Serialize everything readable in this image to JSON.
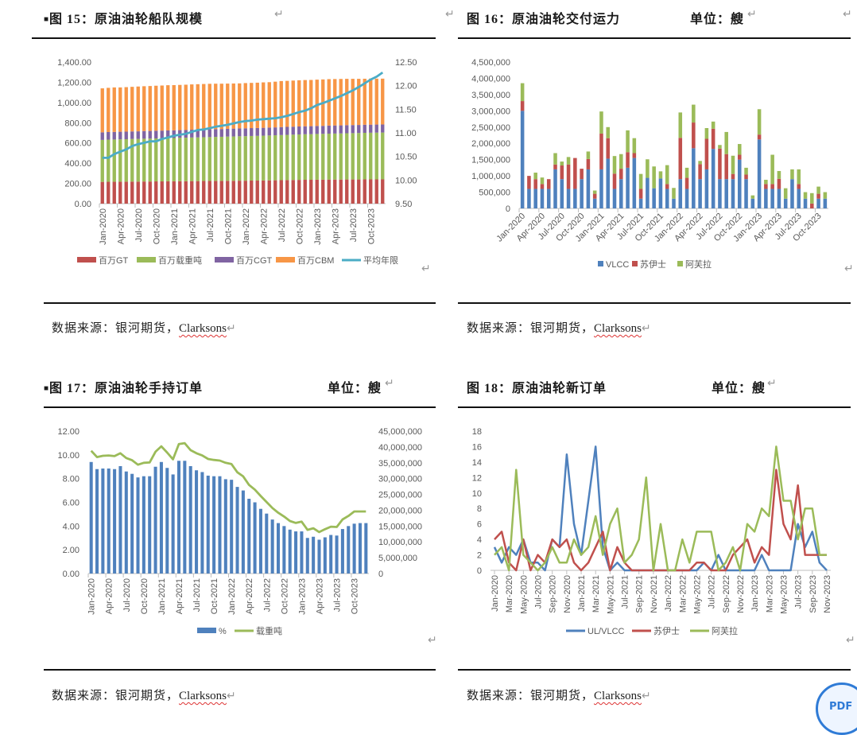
{
  "figures": {
    "f15": {
      "title": "图 15：原油油轮船队规模",
      "source_prefix": "数据来源：银河期货，",
      "source_brand": "Clarksons"
    },
    "f16": {
      "title": "图 16：原油油轮交付运力",
      "unit": "单位：艘",
      "source_prefix": "数据来源：银河期货，",
      "source_brand": "Clarksons"
    },
    "f17": {
      "title": "图 17：原油油轮手持订单",
      "unit": "单位：艘",
      "source_prefix": "数据来源：银河期货，",
      "source_brand": "Clarksons"
    },
    "f18": {
      "title": "图 18：原油油轮新订单",
      "unit": "单位：艘",
      "source_prefix": "数据来源：银河期货，",
      "source_brand": "Clarksons"
    }
  },
  "marks": {
    "return": "↵",
    "bullet": "■",
    "pdf_icon": "PDF"
  },
  "chart_data": [
    {
      "id": "f15",
      "type": "bar",
      "stacked": true,
      "x_start": "Jan-2020",
      "x_end": "Dec-2023",
      "x_tick_labels": [
        "Jan-2020",
        "Apr-2020",
        "Jul-2020",
        "Oct-2020",
        "Jan-2021",
        "Apr-2021",
        "Jul-2021",
        "Oct-2021",
        "Jan-2022",
        "Apr-2022",
        "Jul-2022",
        "Oct-2022",
        "Jan-2023",
        "Apr-2023",
        "Jul-2023",
        "Oct-2023"
      ],
      "y_left": {
        "min": 0,
        "max": 1400,
        "ticks": [
          "0.00",
          "200.00",
          "400.00",
          "600.00",
          "800.00",
          "1,000.00",
          "1,200.00",
          "1,400.00"
        ]
      },
      "y_right": {
        "min": 9.5,
        "max": 12.5,
        "ticks": [
          "9.50",
          "10.00",
          "10.50",
          "11.00",
          "11.50",
          "12.00",
          "12.50"
        ]
      },
      "legend_position": "bottom",
      "series": [
        {
          "name": "百万GT",
          "color": "#C0504D",
          "axis": "left",
          "kind": "bar",
          "values": [
            215,
            216,
            216,
            217,
            217,
            218,
            218,
            219,
            219,
            220,
            220,
            221,
            221,
            222,
            222,
            223,
            223,
            224,
            224,
            225,
            225,
            226,
            226,
            227,
            227,
            228,
            228,
            229,
            230,
            231,
            232,
            233,
            234,
            235,
            236,
            236,
            237,
            237,
            238,
            238,
            238,
            239,
            239,
            239,
            240,
            240,
            240,
            240
          ]
        },
        {
          "name": "百万载重吨",
          "color": "#9BBB59",
          "axis": "left",
          "kind": "bar",
          "values": [
            415,
            417,
            418,
            419,
            420,
            421,
            422,
            423,
            424,
            425,
            426,
            427,
            428,
            429,
            430,
            431,
            432,
            433,
            434,
            435,
            436,
            437,
            438,
            439,
            440,
            441,
            442,
            443,
            444,
            445,
            446,
            447,
            448,
            449,
            450,
            451,
            452,
            453,
            454,
            455,
            456,
            457,
            458,
            459,
            460,
            461,
            462,
            463
          ]
        },
        {
          "name": "百万CGT",
          "color": "#8064A2",
          "axis": "left",
          "kind": "bar",
          "values": [
            75,
            75,
            75,
            75,
            75,
            75,
            75,
            76,
            76,
            76,
            76,
            76,
            76,
            76,
            76,
            77,
            77,
            77,
            77,
            77,
            77,
            77,
            78,
            78,
            78,
            78,
            78,
            78,
            78,
            78,
            79,
            79,
            79,
            79,
            79,
            79,
            79,
            79,
            80,
            80,
            80,
            80,
            80,
            80,
            80,
            80,
            80,
            80
          ]
        },
        {
          "name": "百万CBM",
          "color": "#F79646",
          "axis": "left",
          "kind": "bar",
          "values": [
            435,
            437,
            440,
            438,
            440,
            441,
            443,
            443,
            444,
            445,
            446,
            447,
            447,
            447,
            448,
            448,
            449,
            449,
            450,
            449,
            448,
            447,
            446,
            445,
            447,
            447,
            448,
            449,
            449,
            452,
            455,
            455,
            456,
            457,
            457,
            457,
            458,
            459,
            459,
            459,
            459,
            458,
            457,
            456,
            455,
            456,
            454,
            453
          ]
        },
        {
          "name": "平均年限",
          "color": "#4BACC6",
          "axis": "right",
          "kind": "line",
          "values": [
            10.47,
            10.47,
            10.55,
            10.6,
            10.65,
            10.72,
            10.76,
            10.79,
            10.82,
            10.82,
            10.87,
            10.9,
            10.94,
            10.96,
            10.98,
            11.02,
            11.06,
            11.07,
            11.1,
            11.13,
            11.15,
            11.17,
            11.2,
            11.23,
            11.25,
            11.26,
            11.28,
            11.29,
            11.3,
            11.31,
            11.33,
            11.36,
            11.4,
            11.44,
            11.47,
            11.52,
            11.59,
            11.63,
            11.68,
            11.73,
            11.78,
            11.84,
            11.9,
            11.97,
            12.05,
            12.13,
            12.19,
            12.28
          ]
        }
      ]
    },
    {
      "id": "f16",
      "type": "bar",
      "stacked": true,
      "x_start": "Jan-2020",
      "x_end": "Nov-2023",
      "x_tick_labels": [
        "Jan-2020",
        "Apr-2020",
        "Jul-2020",
        "Oct-2020",
        "Jan-2021",
        "Apr-2021",
        "Jul-2021",
        "Oct-2021",
        "Jan-2022",
        "Apr-2022",
        "Jul-2022",
        "Oct-2022",
        "Jan-2023",
        "Apr-2023",
        "Jul-2023",
        "Oct-2023"
      ],
      "y_left": {
        "min": 0,
        "max": 4500000,
        "ticks": [
          "0",
          "500,000",
          "1,000,000",
          "1,500,000",
          "2,000,000",
          "2,500,000",
          "3,000,000",
          "3,500,000",
          "4,000,000",
          "4,500,000"
        ]
      },
      "legend_position": "bottom",
      "series": [
        {
          "name": "VLCC",
          "color": "#4F81BD",
          "kind": "bar",
          "values": [
            3000000,
            600000,
            600000,
            600000,
            600000,
            1200000,
            900000,
            600000,
            600000,
            900000,
            1200000,
            300000,
            1200000,
            1530000,
            600000,
            900000,
            1250000,
            1550000,
            300000,
            940000,
            620000,
            920000,
            600000,
            300000,
            900000,
            600000,
            1850000,
            900000,
            1200000,
            1830000,
            900000,
            900000,
            900000,
            1500000,
            900000,
            300000,
            2120000,
            600000,
            600000,
            600000,
            300000,
            900000,
            600000,
            300000,
            0,
            300000,
            300000
          ]
        },
        {
          "name": "苏伊士",
          "color": "#C0504D",
          "kind": "bar",
          "values": [
            300000,
            400000,
            300000,
            150000,
            300000,
            150000,
            420000,
            750000,
            950000,
            320000,
            320000,
            150000,
            1100000,
            630000,
            470000,
            320000,
            480000,
            150000,
            300000,
            0,
            0,
            0,
            150000,
            0,
            1270000,
            340000,
            790000,
            460000,
            940000,
            620000,
            940000,
            770000,
            160000,
            150000,
            140000,
            0,
            150000,
            150000,
            150000,
            310000,
            0,
            0,
            150000,
            0,
            150000,
            150000,
            0
          ]
        },
        {
          "name": "阿芙拉",
          "color": "#9BBB59",
          "kind": "bar",
          "values": [
            550000,
            0,
            200000,
            200000,
            0,
            350000,
            120000,
            230000,
            0,
            0,
            230000,
            100000,
            680000,
            340000,
            540000,
            450000,
            670000,
            460000,
            460000,
            570000,
            670000,
            220000,
            580000,
            330000,
            780000,
            310000,
            550000,
            100000,
            330000,
            220000,
            110000,
            680000,
            560000,
            330000,
            210000,
            100000,
            780000,
            130000,
            900000,
            240000,
            320000,
            300000,
            450000,
            200000,
            320000,
            220000,
            200000
          ]
        }
      ]
    },
    {
      "id": "f17",
      "type": "bar",
      "x_start": "Jan-2020",
      "x_end": "Dec-2023",
      "x_tick_labels": [
        "Jan-2020",
        "Apr-2020",
        "Jul-2020",
        "Oct-2020",
        "Jan-2021",
        "Apr-2021",
        "Jul-2021",
        "Oct-2021",
        "Jan-2022",
        "Apr-2022",
        "Jul-2022",
        "Oct-2022",
        "Jan-2023",
        "Apr-2023",
        "Jul-2023",
        "Oct-2023"
      ],
      "y_left": {
        "min": 0,
        "max": 12,
        "ticks": [
          "0.00",
          "2.00",
          "4.00",
          "6.00",
          "8.00",
          "10.00",
          "12.00"
        ]
      },
      "y_right": {
        "min": 0,
        "max": 45000000,
        "ticks": [
          "0",
          "5,000,000",
          "10,000,000",
          "15,000,000",
          "20,000,000",
          "25,000,000",
          "30,000,000",
          "35,000,000",
          "40,000,000",
          "45,000,000"
        ]
      },
      "legend_position": "bottom",
      "series": [
        {
          "name": "%",
          "color": "#4F81BD",
          "axis": "left",
          "kind": "bar",
          "values": [
            9.4,
            8.8,
            8.85,
            8.85,
            8.8,
            9.05,
            8.6,
            8.4,
            8.1,
            8.2,
            8.2,
            9.0,
            9.4,
            8.9,
            8.35,
            9.5,
            9.5,
            9.05,
            8.7,
            8.55,
            8.25,
            8.2,
            8.2,
            7.95,
            7.9,
            7.3,
            7.0,
            6.3,
            6.0,
            5.45,
            5.05,
            4.55,
            4.25,
            4.0,
            3.7,
            3.55,
            3.55,
            3.0,
            3.1,
            2.85,
            3.05,
            3.25,
            3.2,
            3.75,
            4.0,
            4.2,
            4.25,
            4.25
          ]
        },
        {
          "name": "载重吨",
          "color": "#9BBB59",
          "axis": "right",
          "kind": "line",
          "values": [
            38800000,
            36800000,
            37200000,
            37300000,
            37100000,
            38000000,
            36500000,
            35800000,
            34400000,
            35000000,
            35100000,
            38500000,
            40200000,
            38200000,
            36100000,
            40900000,
            41200000,
            39000000,
            38000000,
            37300000,
            36200000,
            35900000,
            35700000,
            35000000,
            34600000,
            32000000,
            30700000,
            28000000,
            26500000,
            24500000,
            22600000,
            20700000,
            19200000,
            18000000,
            16600000,
            16000000,
            16400000,
            13800000,
            14300000,
            13100000,
            14000000,
            14800000,
            14700000,
            17100000,
            18200000,
            19600000,
            19600000,
            19600000
          ]
        }
      ]
    },
    {
      "id": "f18",
      "type": "line",
      "x_start": "Jan-2020",
      "x_end": "Nov-2023",
      "x_tick_labels": [
        "Jan-2020",
        "Mar-2020",
        "May-2020",
        "Jul-2020",
        "Sep-2020",
        "Nov-2020",
        "Jan-2021",
        "Mar-2021",
        "May-2021",
        "Jul-2021",
        "Sep-2021",
        "Nov-2021",
        "Jan-2022",
        "Mar-2022",
        "May-2022",
        "Jul-2022",
        "Sep-2022",
        "Nov-2022",
        "Jan-2023",
        "Mar-2023",
        "May-2023",
        "Jul-2023",
        "Sep-2023",
        "Nov-2023"
      ],
      "y_left": {
        "min": 0,
        "max": 18,
        "ticks": [
          "0",
          "2",
          "4",
          "6",
          "8",
          "10",
          "12",
          "14",
          "16",
          "18"
        ]
      },
      "legend_position": "bottom",
      "series": [
        {
          "name": "UL/VLCC",
          "color": "#4F81BD",
          "values": [
            3,
            1,
            3,
            2,
            4,
            1,
            1,
            0,
            4,
            3,
            15,
            6,
            2,
            9,
            16,
            3,
            0,
            1,
            0,
            0,
            0,
            0,
            0,
            0,
            0,
            0,
            0,
            0,
            0,
            1,
            0,
            2,
            0,
            0,
            0,
            0,
            0,
            2,
            0,
            0,
            0,
            0,
            6,
            3,
            5,
            1,
            0
          ]
        },
        {
          "name": "苏伊士",
          "color": "#C0504D",
          "values": [
            4,
            5,
            1,
            0,
            4,
            0,
            2,
            1,
            4,
            3,
            4,
            1,
            0,
            1,
            3,
            5,
            0,
            3,
            1,
            0,
            0,
            0,
            0,
            0,
            0,
            0,
            0,
            0,
            1,
            1,
            0,
            0,
            0,
            2,
            3,
            4,
            1,
            3,
            2,
            13,
            6,
            4,
            11,
            2,
            2,
            2,
            2
          ]
        },
        {
          "name": "阿芙拉",
          "color": "#9BBB59",
          "values": [
            2,
            3,
            0,
            13,
            2,
            1,
            0,
            1,
            3,
            1,
            1,
            4,
            2,
            3,
            7,
            2,
            6,
            8,
            1,
            2,
            4,
            12,
            0,
            6,
            0,
            0,
            4,
            1,
            5,
            5,
            5,
            0,
            1,
            3,
            0,
            6,
            5,
            8,
            7,
            16,
            9,
            9,
            4,
            8,
            8,
            2,
            2
          ]
        }
      ]
    }
  ]
}
